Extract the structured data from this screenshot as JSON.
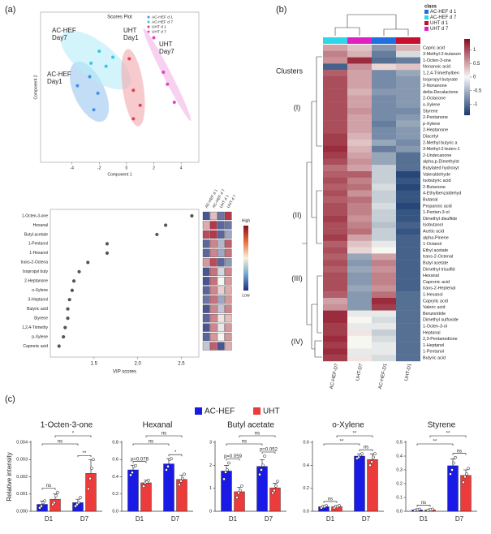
{
  "panel_labels": [
    "(a)",
    "(b)",
    "(c)"
  ],
  "chart_data": [
    {
      "type": "scatter",
      "title": "Scores Plot",
      "xlabel": "Component 1",
      "ylabel": "Component 2",
      "xlim": [
        -6.3,
        5.3
      ],
      "ylim": [
        -4.5,
        5.5
      ],
      "xticks": [
        -4,
        -2,
        0,
        2,
        4
      ],
      "legend": "top-right",
      "series": [
        {
          "name": "AC-HEF d 1",
          "color": "#4a8fe0",
          "x": [
            -3.6,
            -2.7,
            -2.1,
            -2.4
          ],
          "values": [
            0.6,
            1.2,
            0.1,
            -1.0
          ]
        },
        {
          "name": "AC-HEF d 7",
          "color": "#35c8e6",
          "x": [
            -2.6,
            -1.5,
            -1.0,
            -2.0
          ],
          "values": [
            2.1,
            1.9,
            2.5,
            2.9
          ]
        },
        {
          "name": "UHT d 1",
          "color": "#e0404e",
          "x": [
            0.2,
            0.5,
            1.0,
            0.5
          ],
          "values": [
            2.4,
            0.3,
            -0.7,
            -1.6
          ]
        },
        {
          "name": "UHT d 7",
          "color": "#e244c4",
          "x": [
            2.0,
            2.7,
            3.0,
            3.5
          ],
          "values": [
            3.8,
            1.5,
            0.7,
            -0.5
          ]
        }
      ],
      "annotations": [
        [
          "AC-HEF",
          "Day7"
        ],
        [
          "AC-HEF",
          "Day1"
        ],
        [
          "UHT",
          "Day1"
        ],
        [
          "UHT",
          "Day7"
        ]
      ]
    },
    {
      "type": "dot",
      "xlabel": "VIP scores",
      "xlim": [
        1.0,
        2.7
      ],
      "xticks": [
        1.5,
        {
          "value": 2.0,
          "label": "2.0"
        },
        2.5
      ],
      "categories": [
        "1-Octen-3-one",
        "Hexanal",
        "Butyl-acetate",
        "1-Pentanol",
        "1-Hexanol",
        "trans-2-Octena",
        "Isopropyl buty",
        "2-Heptanone",
        "o-Xylene",
        "3-Heptanol",
        "Butyric acid",
        "Styrene",
        "1,2,4-Trimethy",
        "p-Xylene",
        "Capronic acid"
      ],
      "values": [
        2.62,
        2.32,
        2.22,
        1.65,
        1.65,
        1.43,
        1.33,
        1.27,
        1.25,
        1.22,
        1.2,
        1.2,
        1.17,
        1.15,
        1.1
      ],
      "color": "#555555",
      "heat_columns": [
        "AC-HEF d 1",
        "AC-HEF d 7",
        "UHT d 1",
        "UHT d 7"
      ],
      "heat": [
        [
          -1.0,
          0.3,
          -0.8,
          1.0
        ],
        [
          0.4,
          1.0,
          -0.9,
          -0.8
        ],
        [
          0.9,
          1.0,
          -0.9,
          -0.5
        ],
        [
          -0.9,
          0.6,
          -0.4,
          0.8
        ],
        [
          -0.9,
          0.6,
          -0.5,
          0.7
        ],
        [
          0.5,
          0.9,
          -0.9,
          -0.6
        ],
        [
          -1.0,
          0.7,
          -0.2,
          0.6
        ],
        [
          -1.0,
          0.7,
          0.0,
          0.5
        ],
        [
          -0.9,
          0.6,
          0.2,
          0.4
        ],
        [
          -0.8,
          0.7,
          -0.5,
          0.5
        ],
        [
          -1.0,
          0.6,
          -0.3,
          0.6
        ],
        [
          -0.9,
          0.6,
          0.1,
          0.3
        ],
        [
          -1.0,
          0.6,
          -0.1,
          0.5
        ],
        [
          -0.9,
          0.5,
          0.0,
          0.5
        ],
        [
          -0.3,
          0.8,
          -1.0,
          0.4
        ]
      ],
      "clim": [
        -1.2,
        1.2
      ],
      "colorbar_labels": [
        "High",
        "Low"
      ]
    },
    {
      "type": "heatmap",
      "legend_title": "class",
      "classes": [
        "AC-HEF d 1",
        "AC-HEF d 7",
        "UHT d 1",
        "UHT d 7"
      ],
      "class_colors": [
        "#1f6fe0",
        "#2ed6ea",
        "#c8102e",
        "#e020c0"
      ],
      "columns": [
        "AC-HEF-D7",
        "UHT-D7",
        "AC-HEF-D1",
        "UHT-D1"
      ],
      "column_colors": [
        "#2ed6ea",
        "#e020c0",
        "#1f6fe0",
        "#c8102e"
      ],
      "rows": [
        "Capric acid",
        "3-Methyl-2-butanon",
        "1-Octen-3-one",
        "Nonanoic acid",
        "1,2,4-Trimethylben",
        "Isopropyl butyrate",
        "2-Nonanone",
        "delta-Decalactone",
        "2-Octanone",
        "o-Xylene",
        "Styrene",
        "2-Pentanone",
        "p-Xylene",
        "2-Heptanone",
        "Diacetyl",
        "2-Methyl butyric a",
        "3-Methyl-2-buten-1",
        "2-Undecanone",
        "alpha,p-Dimethylst",
        "Butylated hydroxyt",
        "Valeraldehyde",
        "Isobutyric acid",
        "2-Butanone",
        "4-Ethylbenzaldehyd",
        "Butanal",
        "Propanoic acid",
        "1-Penten-3-ol",
        "Dimethyl disulfide",
        "Isobutanol",
        "Acetic acid",
        "alpha-Pinene",
        "1-Octanol",
        "Ethyl acetate",
        "trans-2-Octenal",
        "Butyl acetate",
        "Dimethyl trisulfid",
        "Hexanal",
        "Capronic acid",
        "trans-2-Heptenal",
        "1-Hexanol",
        "Caprylic acid",
        "Valeric acid",
        "Benzonitrile",
        "Dimethyl sulfoxide",
        "1-Octen-3-ol",
        "Heptanal",
        "2,3-Pentanedione",
        "1-Heptanol",
        "1-Pentanol",
        "Butyric acid"
      ],
      "values": [
        [
          0.5,
          0.3,
          -0.7,
          0.4
        ],
        [
          0.7,
          0.4,
          -0.9,
          -0.2
        ],
        [
          0.6,
          1.2,
          -1.0,
          -0.9
        ],
        [
          -1.1,
          0.6,
          0.2,
          0.3
        ],
        [
          0.9,
          0.5,
          -0.8,
          -0.6
        ],
        [
          1.0,
          0.5,
          -0.8,
          -0.7
        ],
        [
          1.0,
          0.5,
          -0.8,
          -0.7
        ],
        [
          1.0,
          0.4,
          -0.7,
          -0.7
        ],
        [
          1.0,
          0.5,
          -0.8,
          -0.7
        ],
        [
          1.0,
          0.5,
          -0.8,
          -0.7
        ],
        [
          1.0,
          0.6,
          -0.8,
          -0.8
        ],
        [
          1.0,
          0.5,
          -0.8,
          -0.7
        ],
        [
          1.0,
          0.5,
          -0.9,
          -0.6
        ],
        [
          1.0,
          0.5,
          -0.8,
          -0.7
        ],
        [
          1.1,
          0.4,
          -0.8,
          -0.7
        ],
        [
          1.1,
          0.3,
          -0.6,
          -0.8
        ],
        [
          1.2,
          0.4,
          -0.9,
          -0.7
        ],
        [
          1.1,
          0.5,
          -0.6,
          -1.0
        ],
        [
          1.0,
          0.6,
          -0.6,
          -1.0
        ],
        [
          0.8,
          0.5,
          -0.3,
          -1.0
        ],
        [
          0.9,
          0.9,
          -0.3,
          -1.3
        ],
        [
          1.0,
          0.7,
          -0.3,
          -1.2
        ],
        [
          0.9,
          0.8,
          -0.2,
          -1.3
        ],
        [
          1.0,
          0.6,
          -0.3,
          -1.2
        ],
        [
          0.9,
          0.8,
          -0.3,
          -1.2
        ],
        [
          1.0,
          0.7,
          -0.2,
          -1.3
        ],
        [
          1.0,
          0.7,
          -0.3,
          -1.2
        ],
        [
          1.1,
          0.6,
          -0.3,
          -1.2
        ],
        [
          1.0,
          0.7,
          -0.4,
          -1.1
        ],
        [
          1.0,
          0.8,
          -0.3,
          -1.2
        ],
        [
          1.1,
          0.5,
          -0.3,
          -1.1
        ],
        [
          0.9,
          0.3,
          -0.1,
          -1.1
        ],
        [
          1.0,
          0.2,
          0.0,
          -1.1
        ],
        [
          0.9,
          -0.6,
          0.5,
          -1.1
        ],
        [
          1.0,
          -0.7,
          0.7,
          -1.1
        ],
        [
          0.9,
          -0.6,
          0.6,
          -1.1
        ],
        [
          1.0,
          -0.7,
          0.7,
          -1.1
        ],
        [
          1.0,
          -0.7,
          0.7,
          -1.1
        ],
        [
          1.0,
          -0.6,
          0.6,
          -1.1
        ],
        [
          0.9,
          -0.7,
          0.8,
          -1.0
        ],
        [
          0.5,
          -0.7,
          1.2,
          -1.0
        ],
        [
          0.6,
          -0.7,
          1.1,
          -1.0
        ],
        [
          1.2,
          -0.1,
          -0.1,
          -1.0
        ],
        [
          1.2,
          0.0,
          -0.2,
          -1.0
        ],
        [
          1.1,
          -0.1,
          -0.1,
          -1.0
        ],
        [
          1.1,
          0.1,
          -0.3,
          -1.0
        ],
        [
          1.2,
          0.0,
          -0.2,
          -1.0
        ],
        [
          1.1,
          0.0,
          -0.1,
          -1.0
        ],
        [
          1.2,
          -0.1,
          -0.1,
          -1.0
        ],
        [
          1.1,
          0.1,
          -0.2,
          -1.0
        ]
      ],
      "clim": [
        -1.4,
        1.4
      ],
      "colorbar_ticks": [
        1,
        0.5,
        0,
        -0.5,
        -1
      ],
      "cluster_title": "Clusters",
      "clusters": [
        "(I)",
        "(II)",
        "(III)",
        "(IV)"
      ]
    },
    {
      "type": "bar",
      "title": "1-Octen-3-one",
      "ylabel": "Relative intensity",
      "categories": [
        "D1",
        "D7"
      ],
      "ylim": [
        0,
        0.004
      ],
      "yticks": [
        {
          "value": 0,
          "label": "0.000"
        },
        {
          "value": 0.001,
          "label": "0.001"
        },
        {
          "value": 0.002,
          "label": "0.002"
        },
        {
          "value": 0.003,
          "label": "0.003"
        },
        {
          "value": 0.004,
          "label": "0.004"
        }
      ],
      "series": [
        {
          "name": "AC-HEF",
          "color": "#1a1ae6",
          "values": [
            0.0004,
            0.0005
          ],
          "errors": [
            0.0002,
            0.0002
          ],
          "points": [
            [
              0.0002,
              0.0003,
              0.0005,
              0.0006
            ],
            [
              0.0003,
              0.0004,
              0.0005,
              0.0008
            ]
          ]
        },
        {
          "name": "UHT",
          "color": "#ec3b3b",
          "values": [
            0.0007,
            0.0022
          ],
          "errors": [
            0.0003,
            0.0008
          ],
          "points": [
            [
              0.0004,
              0.0005,
              0.0009,
              0.0011
            ],
            [
              0.0013,
              0.0019,
              0.0025,
              0.003
            ]
          ]
        }
      ],
      "annotations": [
        "ns",
        "**",
        "ns",
        "*"
      ]
    },
    {
      "type": "bar",
      "title": "Hexanal",
      "categories": [
        "D1",
        "D7"
      ],
      "ylim": [
        0,
        0.8
      ],
      "yticks": [
        {
          "value": 0,
          "label": "0.0"
        },
        0.2,
        0.4,
        0.6,
        0.8
      ],
      "series": [
        {
          "color": "#1a1ae6",
          "values": [
            0.48,
            0.55
          ],
          "errors": [
            0.05,
            0.06
          ],
          "points": [
            [
              0.42,
              0.45,
              0.52,
              0.53
            ],
            [
              0.48,
              0.52,
              0.6,
              0.61
            ]
          ]
        },
        {
          "color": "#ec3b3b",
          "values": [
            0.33,
            0.37
          ],
          "errors": [
            0.03,
            0.05
          ],
          "points": [
            [
              0.29,
              0.33,
              0.34,
              0.36
            ],
            [
              0.31,
              0.35,
              0.38,
              0.43
            ]
          ]
        }
      ],
      "annotations": [
        "p=0.078",
        "*",
        "ns",
        "ns"
      ]
    },
    {
      "type": "bar",
      "title": "Butyl acetate",
      "categories": [
        "D1",
        "D7"
      ],
      "ylim": [
        0,
        3
      ],
      "yticks": [
        0,
        1,
        2,
        3
      ],
      "series": [
        {
          "color": "#1a1ae6",
          "values": [
            1.75,
            1.95
          ],
          "errors": [
            0.25,
            0.3
          ],
          "points": [
            [
              1.4,
              1.7,
              1.8,
              2.1
            ],
            [
              1.6,
              1.8,
              2.0,
              2.4
            ]
          ]
        },
        {
          "color": "#ec3b3b",
          "values": [
            0.85,
            1.02
          ],
          "errors": [
            0.2,
            0.2
          ],
          "points": [
            [
              0.6,
              0.8,
              0.9,
              1.1
            ],
            [
              0.8,
              0.9,
              1.1,
              1.3
            ]
          ]
        }
      ],
      "annotations": [
        "p=0.059",
        "p=0.052",
        "ns",
        "ns"
      ]
    },
    {
      "type": "bar",
      "title": "o-Xylene",
      "categories": [
        "D1",
        "D7"
      ],
      "ylim": [
        0,
        0.6
      ],
      "yticks": [
        {
          "value": 0,
          "label": "0.0"
        },
        0.2,
        0.4,
        0.6
      ],
      "series": [
        {
          "color": "#1a1ae6",
          "values": [
            0.04,
            0.48
          ],
          "errors": [
            0.01,
            0.02
          ],
          "points": [
            [
              0.03,
              0.04,
              0.04,
              0.05
            ],
            [
              0.46,
              0.47,
              0.49,
              0.5
            ]
          ]
        },
        {
          "color": "#ec3b3b",
          "values": [
            0.04,
            0.45
          ],
          "errors": [
            0.01,
            0.05
          ],
          "points": [
            [
              0.03,
              0.04,
              0.04,
              0.05
            ],
            [
              0.4,
              0.43,
              0.47,
              0.5
            ]
          ]
        }
      ],
      "annotations": [
        "ns",
        "ns",
        "**",
        "**"
      ]
    },
    {
      "type": "bar",
      "title": "Styrene",
      "categories": [
        "D1",
        "D7"
      ],
      "ylim": [
        0,
        0.5
      ],
      "yticks": [
        {
          "value": 0,
          "label": "0.0"
        },
        0.1,
        0.2,
        0.3,
        0.4,
        0.5
      ],
      "series": [
        {
          "color": "#1a1ae6",
          "values": [
            0.01,
            0.33
          ],
          "errors": [
            0.005,
            0.05
          ],
          "points": [
            [
              0.005,
              0.01,
              0.01,
              0.015
            ],
            [
              0.27,
              0.3,
              0.35,
              0.39
            ]
          ]
        },
        {
          "color": "#ec3b3b",
          "values": [
            0.01,
            0.26
          ],
          "errors": [
            0.005,
            0.04
          ],
          "points": [
            [
              0.005,
              0.01,
              0.01,
              0.015
            ],
            [
              0.21,
              0.25,
              0.27,
              0.31
            ]
          ]
        }
      ],
      "annotations": [
        "ns",
        "ns",
        "**",
        "**"
      ]
    }
  ]
}
